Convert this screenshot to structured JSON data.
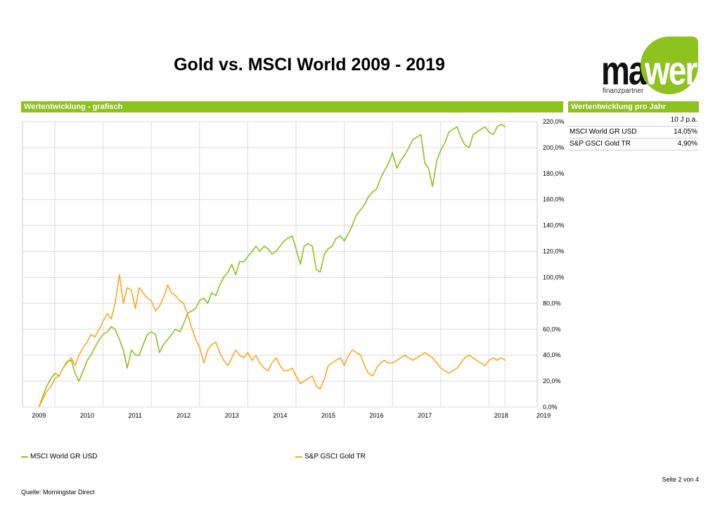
{
  "header": {
    "title": "Gold vs. MSCI World 2009 - 2019"
  },
  "logo": {
    "text_mai": "mai",
    "text_werk": "werk",
    "subtitle": "finanzpartner",
    "color": "#8dc21f"
  },
  "sections": {
    "left_label": "Wertentwicklung - grafisch",
    "right_label": "Wertentwicklung pro Jahr"
  },
  "perf_table": {
    "header": "10 J p.a.",
    "rows": [
      {
        "name": "MSCI World GR USD",
        "value": "14,05%"
      },
      {
        "name": "S&P GSCI Gold TR",
        "value": "4,90%"
      }
    ]
  },
  "chart_data": {
    "type": "line",
    "x_tick_labels": [
      "2009",
      "2010",
      "2011",
      "2012",
      "2013",
      "2014",
      "2015",
      "2016",
      "2017",
      "2018",
      "2019"
    ],
    "y_tick_labels": [
      "0,0%",
      "20,0%",
      "40,0%",
      "60,0%",
      "80,0%",
      "100,0%",
      "120,0%",
      "140,0%",
      "160,0%",
      "180,0%",
      "200,0%",
      "220,0%"
    ],
    "ylim": [
      0,
      220
    ],
    "grid": true,
    "legend_position": "bottom",
    "series": [
      {
        "name": "MSCI World GR USD",
        "color": "#8dc21f",
        "x": [
          2009.0,
          2009.08,
          2009.16,
          2009.25,
          2009.33,
          2009.42,
          2009.5,
          2009.58,
          2009.67,
          2009.75,
          2009.83,
          2009.92,
          2010.0,
          2010.08,
          2010.16,
          2010.25,
          2010.33,
          2010.42,
          2010.5,
          2010.58,
          2010.67,
          2010.75,
          2010.83,
          2010.92,
          2011.0,
          2011.08,
          2011.16,
          2011.25,
          2011.33,
          2011.42,
          2011.5,
          2011.58,
          2011.67,
          2011.75,
          2011.83,
          2011.92,
          2012.0,
          2012.08,
          2012.16,
          2012.25,
          2012.33,
          2012.42,
          2012.5,
          2012.58,
          2012.67,
          2012.75,
          2012.83,
          2012.92,
          2013.0,
          2013.08,
          2013.16,
          2013.25,
          2013.33,
          2013.42,
          2013.5,
          2013.58,
          2013.67,
          2013.75,
          2013.83,
          2013.92,
          2014.0,
          2014.08,
          2014.16,
          2014.25,
          2014.33,
          2014.42,
          2014.5,
          2014.58,
          2014.67,
          2014.75,
          2014.83,
          2014.92,
          2015.0,
          2015.08,
          2015.16,
          2015.25,
          2015.33,
          2015.42,
          2015.5,
          2015.58,
          2015.67,
          2015.75,
          2015.83,
          2015.92,
          2016.0,
          2016.08,
          2016.16,
          2016.25,
          2016.33,
          2016.42,
          2016.5,
          2016.58,
          2016.67,
          2016.75,
          2016.83,
          2016.92,
          2017.0,
          2017.08,
          2017.16,
          2017.25,
          2017.33,
          2017.42,
          2017.5,
          2017.58,
          2017.67,
          2017.75,
          2017.83,
          2017.92,
          2018.0,
          2018.08,
          2018.16,
          2018.25,
          2018.33,
          2018.42,
          2018.5,
          2018.58,
          2018.67
        ],
        "values": [
          0,
          8,
          16,
          22,
          26,
          24,
          30,
          35,
          36,
          26,
          20,
          28,
          36,
          40,
          46,
          52,
          56,
          58,
          62,
          60,
          52,
          44,
          30,
          44,
          40,
          40,
          48,
          56,
          58,
          56,
          42,
          48,
          52,
          56,
          60,
          58,
          64,
          72,
          74,
          76,
          82,
          84,
          80,
          88,
          86,
          94,
          100,
          104,
          110,
          102,
          112,
          112,
          116,
          120,
          124,
          120,
          124,
          122,
          118,
          120,
          124,
          128,
          130,
          132,
          122,
          110,
          124,
          126,
          124,
          106,
          104,
          118,
          122,
          124,
          130,
          132,
          128,
          134,
          140,
          148,
          152,
          156,
          162,
          166,
          168,
          176,
          182,
          188,
          196,
          184,
          190,
          194,
          200,
          206,
          208,
          210,
          188,
          184,
          170,
          190,
          198,
          204,
          212,
          214,
          216,
          208,
          202,
          200,
          210,
          212,
          214,
          216,
          212,
          210,
          216,
          218,
          216
        ],
        "values_note": ""
      },
      {
        "name": "S&P GSCI Gold TR",
        "color": "#f7a823",
        "x": [
          2009.0,
          2009.08,
          2009.16,
          2009.25,
          2009.33,
          2009.42,
          2009.5,
          2009.58,
          2009.67,
          2009.75,
          2009.83,
          2009.92,
          2010.0,
          2010.08,
          2010.16,
          2010.25,
          2010.33,
          2010.42,
          2010.5,
          2010.58,
          2010.67,
          2010.75,
          2010.83,
          2010.92,
          2011.0,
          2011.08,
          2011.16,
          2011.25,
          2011.33,
          2011.42,
          2011.5,
          2011.58,
          2011.67,
          2011.75,
          2011.83,
          2011.92,
          2012.0,
          2012.08,
          2012.16,
          2012.25,
          2012.33,
          2012.42,
          2012.5,
          2012.58,
          2012.67,
          2012.75,
          2012.83,
          2012.92,
          2013.0,
          2013.08,
          2013.16,
          2013.25,
          2013.33,
          2013.42,
          2013.5,
          2013.58,
          2013.67,
          2013.75,
          2013.83,
          2013.92,
          2014.0,
          2014.08,
          2014.16,
          2014.25,
          2014.33,
          2014.42,
          2014.5,
          2014.58,
          2014.67,
          2014.75,
          2014.83,
          2014.92,
          2015.0,
          2015.08,
          2015.16,
          2015.25,
          2015.33,
          2015.42,
          2015.5,
          2015.58,
          2015.67,
          2015.75,
          2015.83,
          2015.92,
          2016.0,
          2016.08,
          2016.16,
          2016.25,
          2016.33,
          2016.42,
          2016.5,
          2016.58,
          2016.67,
          2016.75,
          2016.83,
          2016.92,
          2017.0,
          2017.08,
          2017.16,
          2017.25,
          2017.33,
          2017.42,
          2017.5,
          2017.58,
          2017.67,
          2017.75,
          2017.83,
          2017.92,
          2018.0,
          2018.08,
          2018.16,
          2018.25,
          2018.33,
          2018.42,
          2018.5,
          2018.58,
          2018.67
        ],
        "values": [
          0,
          6,
          12,
          16,
          22,
          24,
          30,
          34,
          38,
          32,
          40,
          46,
          50,
          56,
          54,
          60,
          66,
          72,
          68,
          80,
          102,
          80,
          92,
          90,
          76,
          92,
          88,
          84,
          82,
          74,
          78,
          84,
          94,
          88,
          86,
          82,
          80,
          72,
          62,
          52,
          46,
          34,
          44,
          48,
          50,
          42,
          36,
          32,
          38,
          44,
          40,
          38,
          42,
          36,
          40,
          34,
          30,
          28,
          34,
          38,
          32,
          28,
          28,
          30,
          24,
          18,
          20,
          22,
          24,
          16,
          14,
          22,
          32,
          34,
          36,
          38,
          32,
          40,
          44,
          42,
          40,
          32,
          26,
          24,
          30,
          34,
          36,
          34,
          34,
          36,
          38,
          40,
          38,
          36,
          38,
          40,
          42,
          40,
          38,
          34,
          30,
          28,
          26,
          28,
          30,
          34,
          38,
          40,
          38,
          36,
          34,
          32,
          36,
          38,
          36,
          38,
          36
        ],
        "values_note": ""
      }
    ]
  },
  "footer": {
    "page": "Seite 2 von 4",
    "source": "Quelle: Morningstar Direct"
  }
}
